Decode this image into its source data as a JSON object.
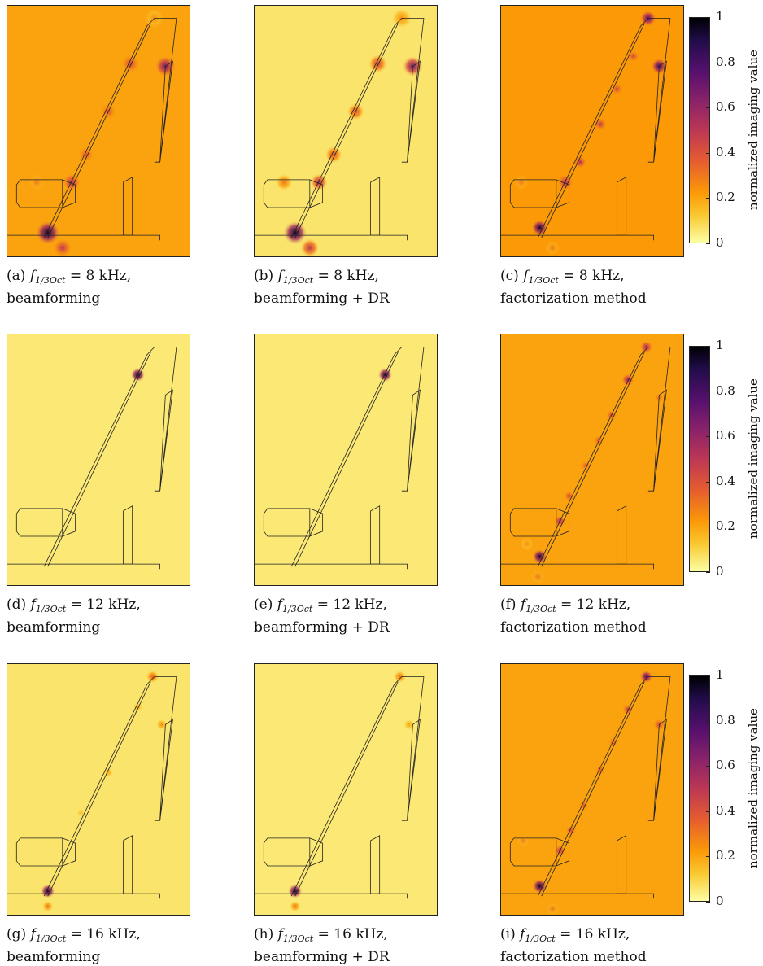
{
  "figure": {
    "colorbar": {
      "label": "normalized imaging value",
      "ticks": [
        "1",
        "0.8",
        "0.6",
        "0.4",
        "0.2",
        "0"
      ]
    },
    "panels": [
      {
        "letter": "(a)",
        "freq": "8 kHz,",
        "method": "beamforming",
        "style": "bf8"
      },
      {
        "letter": "(b)",
        "freq": "8 kHz,",
        "method": "beamforming + DR",
        "style": "dr8"
      },
      {
        "letter": "(c)",
        "freq": "8 kHz,",
        "method": "factorization method",
        "style": "fm8"
      },
      {
        "letter": "(d)",
        "freq": "12 kHz,",
        "method": "beamforming",
        "style": "bf12"
      },
      {
        "letter": "(e)",
        "freq": "12 kHz,",
        "method": "beamforming + DR",
        "style": "dr12"
      },
      {
        "letter": "(f)",
        "freq": "12 kHz,",
        "method": "factorization method",
        "style": "fm12"
      },
      {
        "letter": "(g)",
        "freq": "16 kHz,",
        "method": "beamforming",
        "style": "bf16"
      },
      {
        "letter": "(h)",
        "freq": "16 kHz,",
        "method": "beamforming + DR",
        "style": "dr16"
      },
      {
        "letter": "(i)",
        "freq": "16 kHz,",
        "method": "factorization method",
        "style": "fm16"
      }
    ],
    "symbol": "f",
    "subscript": "1/3Oct",
    "equals": "="
  }
}
